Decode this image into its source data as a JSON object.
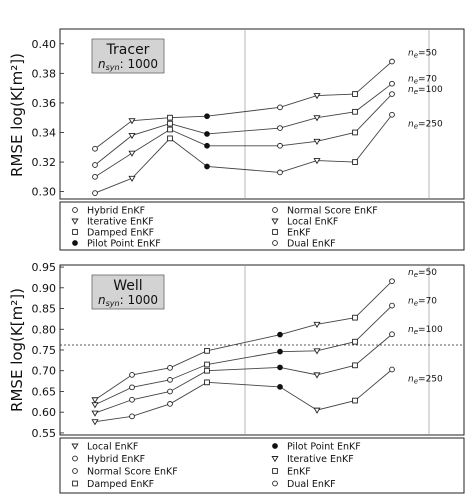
{
  "chart_data": [
    {
      "type": "line",
      "panel": "tracer",
      "box_title": "Tracer",
      "box_subtitle_prefix": "n",
      "box_subtitle_sub": "syn",
      "box_subtitle_value": ": 1000",
      "ylabel": "RMSE  log(K[m²])",
      "ylim": [
        0.295,
        0.41
      ],
      "yticks": [
        0.3,
        0.32,
        0.34,
        0.36,
        0.38,
        0.4
      ],
      "ytick_labels": [
        "0.30",
        "0.32",
        "0.34",
        "0.36",
        "0.38",
        "0.40"
      ],
      "x": [
        1,
        2,
        3,
        4,
        5,
        6,
        7,
        8
      ],
      "markers": [
        "o",
        "v",
        "s",
        "dot",
        "o",
        "v",
        "s",
        "o"
      ],
      "series": [
        {
          "label": "n_e=50",
          "values": [
            0.329,
            0.348,
            0.35,
            0.351,
            0.357,
            0.365,
            0.366,
            0.388
          ]
        },
        {
          "label": "n_e=70",
          "values": [
            0.318,
            0.338,
            0.346,
            0.339,
            0.343,
            0.35,
            0.354,
            0.373
          ]
        },
        {
          "label": "n_e=100",
          "values": [
            0.31,
            0.326,
            0.342,
            0.331,
            0.331,
            0.334,
            0.34,
            0.366
          ]
        },
        {
          "label": "n_e=250",
          "values": [
            0.299,
            0.309,
            0.336,
            0.317,
            0.313,
            0.321,
            0.32,
            0.352
          ]
        }
      ],
      "legend": [
        {
          "marker": "o",
          "label": "Hybrid EnKF"
        },
        {
          "marker": "o",
          "label": "Normal Score EnKF"
        },
        {
          "marker": "v",
          "label": "Iterative EnKF"
        },
        {
          "marker": "v",
          "label": "Local EnKF"
        },
        {
          "marker": "s",
          "label": "Damped EnKF"
        },
        {
          "marker": "s",
          "label": "EnKF"
        },
        {
          "marker": "dot",
          "label": "Pilot Point EnKF"
        },
        {
          "marker": "o",
          "label": "Dual EnKF"
        }
      ]
    },
    {
      "type": "line",
      "panel": "well",
      "box_title": "Well",
      "box_subtitle_prefix": "n",
      "box_subtitle_sub": "syn",
      "box_subtitle_value": ": 1000",
      "ylabel": "RMSE  log(K[m²])",
      "ylim": [
        0.545,
        0.955
      ],
      "yticks": [
        0.55,
        0.6,
        0.65,
        0.7,
        0.75,
        0.8,
        0.85,
        0.9,
        0.95
      ],
      "ytick_labels": [
        "0.55",
        "0.60",
        "0.65",
        "0.70",
        "0.75",
        "0.80",
        "0.85",
        "0.90",
        "0.95"
      ],
      "reference_line": 0.762,
      "x": [
        1,
        2,
        3,
        4,
        5,
        6,
        7,
        8
      ],
      "markers": [
        "v",
        "o",
        "o",
        "s",
        "dot",
        "v",
        "s",
        "o"
      ],
      "series": [
        {
          "label": "n_e=50",
          "values": [
            0.63,
            0.69,
            0.707,
            0.748,
            0.787,
            0.812,
            0.828,
            0.916
          ]
        },
        {
          "label": "n_e=70",
          "values": [
            0.618,
            0.66,
            0.678,
            0.715,
            0.746,
            0.748,
            0.77,
            0.857
          ]
        },
        {
          "label": "n_e=100",
          "values": [
            0.598,
            0.63,
            0.65,
            0.7,
            0.708,
            0.69,
            0.713,
            0.788
          ]
        },
        {
          "label": "n_e=250",
          "values": [
            0.577,
            0.59,
            0.62,
            0.672,
            0.661,
            0.605,
            0.628,
            0.703
          ]
        }
      ],
      "legend": [
        {
          "marker": "v",
          "label": "Local EnKF"
        },
        {
          "marker": "dot",
          "label": "Pilot Point EnKF"
        },
        {
          "marker": "o",
          "label": "Hybrid EnKF"
        },
        {
          "marker": "v",
          "label": "Iterative EnKF"
        },
        {
          "marker": "o",
          "label": "Normal Score EnKF"
        },
        {
          "marker": "s",
          "label": "EnKF"
        },
        {
          "marker": "s",
          "label": "Damped EnKF"
        },
        {
          "marker": "o",
          "label": "Dual EnKF"
        }
      ]
    }
  ]
}
